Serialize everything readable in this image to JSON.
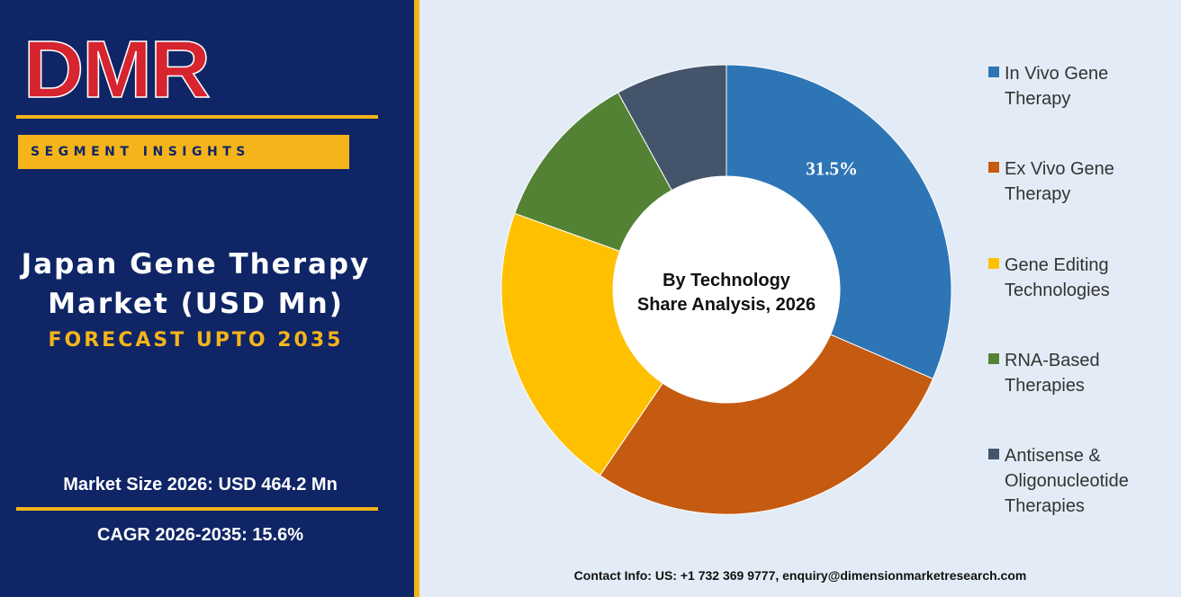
{
  "brand": {
    "logo_text": "DMR"
  },
  "header": {
    "segment_label": "SEGMENT INSIGHTS"
  },
  "title": {
    "line1": "Japan Gene Therapy",
    "line2": "Market (USD Mn)",
    "forecast": "FORECAST UPTO 2035"
  },
  "stats": {
    "market_size": "Market Size 2026: USD 464.2 Mn",
    "cagr": "CAGR 2026-2035: 15.6%"
  },
  "chart_data": {
    "type": "pie",
    "donut": true,
    "center_label_lines": [
      "By Technology",
      "Share Analysis, 2026"
    ],
    "categories": [
      "In Vivo Gene Therapy",
      "Ex Vivo Gene Therapy",
      "Gene Editing Technologies",
      "RNA-Based Therapies",
      "Antisense & Oligonucleotide Therapies"
    ],
    "values": [
      31.5,
      28.0,
      21.0,
      11.5,
      8.0
    ],
    "data_labels": [
      "31.5%",
      "",
      "",
      "",
      ""
    ],
    "colors": [
      "#2e75b6",
      "#c55a11",
      "#ffc000",
      "#548235",
      "#44546a"
    ],
    "legend_position": "right",
    "legend_lines": [
      [
        "In Vivo Gene",
        "Therapy"
      ],
      [
        "Ex Vivo Gene",
        "Therapy"
      ],
      [
        "Gene Editing",
        "Technologies"
      ],
      [
        "RNA-Based",
        "Therapies"
      ],
      [
        "Antisense &",
        "Oligonucleotide",
        "Therapies"
      ]
    ]
  },
  "footer": {
    "contact": "Contact Info: US: +1 732 369 9777, enquiry@dimensionmarketresearch.com"
  }
}
